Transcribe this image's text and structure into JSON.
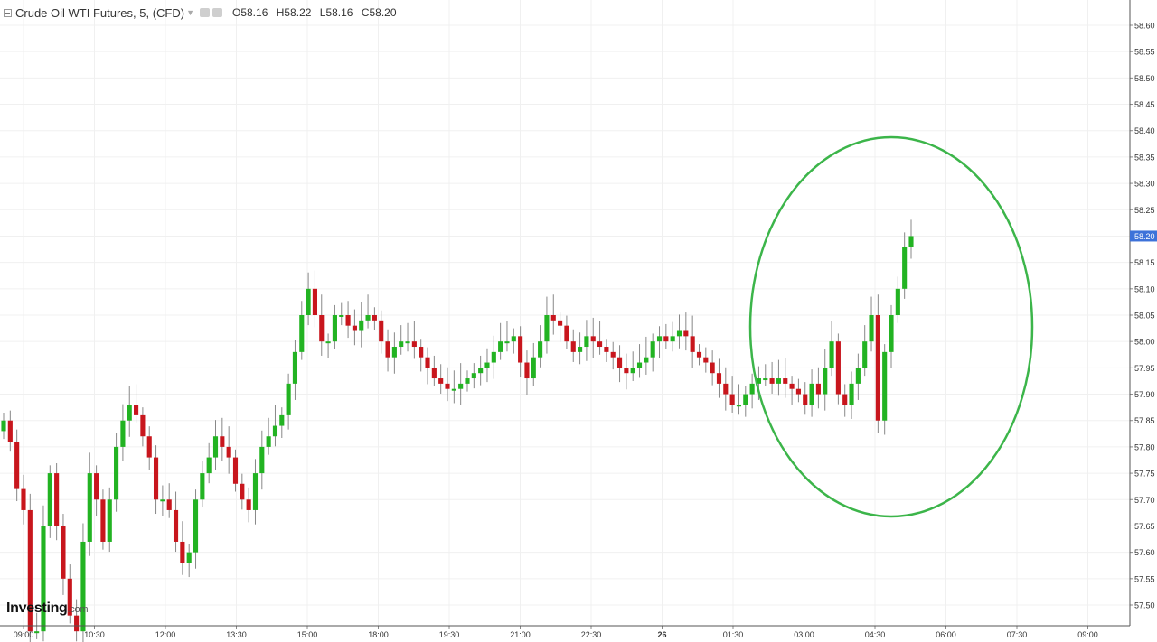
{
  "header": {
    "symbol": "Crude Oil WTI Futures, 5, (CFD)",
    "open": "O58.16",
    "high": "H58.22",
    "low": "L58.16",
    "close": "C58.20",
    "dropdown_icon": "chevron-down-icon",
    "collapse_icon": "collapse-icon"
  },
  "logo": {
    "main": "Investing",
    "suffix": ".com"
  },
  "chart_data": {
    "type": "candlestick",
    "title": "Crude Oil WTI Futures, 5, (CFD)",
    "interval_minutes": 5,
    "ylim": [
      57.45,
      58.65
    ],
    "y_ticks": [
      "58.60",
      "58.55",
      "58.50",
      "58.45",
      "58.40",
      "58.35",
      "58.30",
      "58.25",
      "58.20",
      "58.15",
      "58.10",
      "58.05",
      "58.00",
      "57.95",
      "57.90",
      "57.85",
      "57.80",
      "57.75",
      "57.70",
      "57.65",
      "57.60",
      "57.55",
      "57.50"
    ],
    "x_ticks": [
      "09:00",
      "10:30",
      "12:00",
      "13:30",
      "15:00",
      "18:00",
      "19:30",
      "21:00",
      "22:30",
      "26",
      "01:30",
      "03:00",
      "04:30",
      "06:00",
      "07:30",
      "09:00"
    ],
    "last_price": "58.20",
    "grid": true,
    "up_color": "#22b322",
    "down_color": "#c8161d",
    "annotation_color": "#3cb54a",
    "closes": [
      57.85,
      57.81,
      57.72,
      57.68,
      57.45,
      57.45,
      57.65,
      57.75,
      57.65,
      57.55,
      57.48,
      57.45,
      57.62,
      57.75,
      57.7,
      57.62,
      57.7,
      57.8,
      57.85,
      57.88,
      57.86,
      57.82,
      57.78,
      57.7,
      57.7,
      57.68,
      57.62,
      57.58,
      57.6,
      57.7,
      57.75,
      57.78,
      57.82,
      57.8,
      57.78,
      57.73,
      57.7,
      57.68,
      57.75,
      57.8,
      57.82,
      57.84,
      57.86,
      57.92,
      57.98,
      58.05,
      58.1,
      58.05,
      58.0,
      58.0,
      58.05,
      58.05,
      58.03,
      58.02,
      58.04,
      58.05,
      58.04,
      58.0,
      57.97,
      57.99,
      58.0,
      58.0,
      57.99,
      57.97,
      57.95,
      57.93,
      57.92,
      57.91,
      57.91,
      57.92,
      57.93,
      57.94,
      57.95,
      57.96,
      57.98,
      58.0,
      58.0,
      58.01,
      57.96,
      57.93,
      57.97,
      58.0,
      58.05,
      58.04,
      58.03,
      58.0,
      57.98,
      57.99,
      58.01,
      58.0,
      57.99,
      57.98,
      57.97,
      57.95,
      57.94,
      57.95,
      57.96,
      57.97,
      58.0,
      58.01,
      58.0,
      58.01,
      58.02,
      58.01,
      57.98,
      57.97,
      57.96,
      57.94,
      57.92,
      57.9,
      57.88,
      57.88,
      57.9,
      57.92,
      57.93,
      57.93,
      57.92,
      57.93,
      57.92,
      57.91,
      57.9,
      57.88,
      57.92,
      57.9,
      57.95,
      58.0,
      57.9,
      57.88,
      57.92,
      57.95,
      58.0,
      58.05,
      57.85,
      57.98,
      58.05,
      58.1,
      58.18,
      58.2
    ]
  }
}
